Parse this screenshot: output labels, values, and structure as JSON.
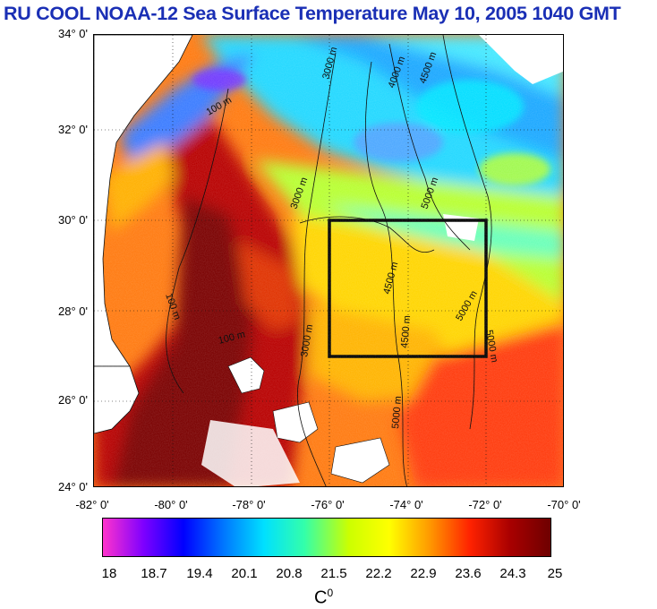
{
  "title": "RU COOL  NOAA-12 Sea Surface Temperature May 10, 2005 1040 GMT",
  "map": {
    "lat_labels": [
      "34° 0'",
      "32° 0'",
      "30° 0'",
      "28° 0'",
      "26° 0'",
      "24° 0'"
    ],
    "lon_labels": [
      "-82° 0'",
      "-80° 0'",
      "-78° 0'",
      "-76° 0'",
      "-74° 0'",
      "-72° 0'",
      "-70° 0'"
    ],
    "lat_range": [
      24,
      34
    ],
    "lon_range": [
      -82,
      -70
    ],
    "study_box": {
      "lon": [
        -76,
        -72
      ],
      "lat": [
        27,
        30
      ]
    },
    "contour_labels": [
      "100 m",
      "3000 m",
      "4000 m",
      "4500 m",
      "5000 m"
    ]
  },
  "colorbar": {
    "ticks": [
      "18",
      "18.7",
      "19.4",
      "20.1",
      "20.8",
      "21.5",
      "22.2",
      "22.9",
      "23.6",
      "24.3",
      "25"
    ],
    "unit": "C",
    "unit_sup": "0",
    "colors": [
      "#ff33cc",
      "#7f00ff",
      "#0000ff",
      "#0077ff",
      "#00e0ff",
      "#33ffaa",
      "#ccff00",
      "#ffff00",
      "#ff9900",
      "#ff2200",
      "#a80000",
      "#6e0000"
    ]
  },
  "colors": {
    "title": "#1a2fb5",
    "land": "#ffffff",
    "box": "#000000"
  }
}
